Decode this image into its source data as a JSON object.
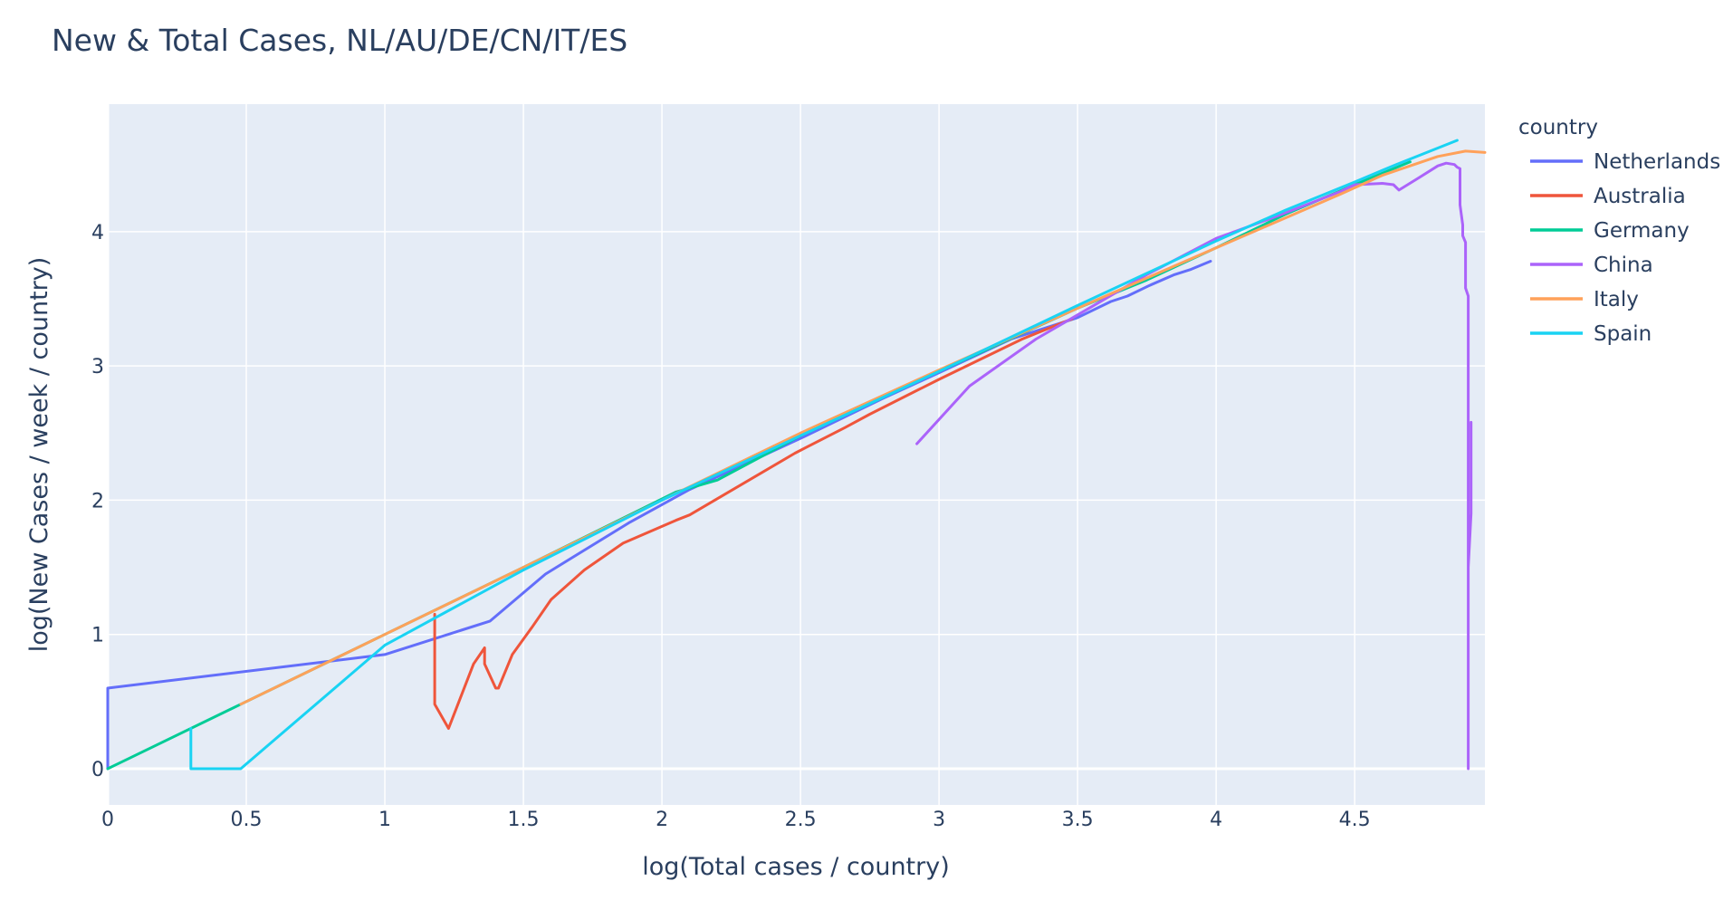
{
  "chart_data": {
    "type": "line",
    "title": "New & Total Cases, NL/AU/DE/CN/IT/ES",
    "xlabel": "log(Total cases / country)",
    "ylabel": "log(New Cases / week / country)",
    "xlim": [
      0,
      4.97
    ],
    "ylim": [
      -0.27,
      4.95
    ],
    "xticks": [
      0,
      0.5,
      1,
      1.5,
      2,
      2.5,
      3,
      3.5,
      4,
      4.5
    ],
    "xtick_labels": [
      "0",
      "0.5",
      "1",
      "1.5",
      "2",
      "2.5",
      "3",
      "3.5",
      "4",
      "4.5"
    ],
    "yticks": [
      0,
      1,
      2,
      3,
      4
    ],
    "ytick_labels": [
      "0",
      "1",
      "2",
      "3",
      "4"
    ],
    "grid": true,
    "plot_bgcolor": "#e5ecf6",
    "legend": {
      "title": "country",
      "position": "right"
    },
    "series": [
      {
        "name": "Netherlands",
        "color": "#636efa",
        "points": [
          [
            0,
            0
          ],
          [
            0,
            0.6
          ],
          [
            1.0,
            0.85
          ],
          [
            1.38,
            1.1
          ],
          [
            1.58,
            1.45
          ],
          [
            1.88,
            1.83
          ],
          [
            2.1,
            2.08
          ],
          [
            2.5,
            2.46
          ],
          [
            2.8,
            2.76
          ],
          [
            3.0,
            2.95
          ],
          [
            3.26,
            3.2
          ],
          [
            3.5,
            3.36
          ],
          [
            3.62,
            3.48
          ],
          [
            3.68,
            3.52
          ],
          [
            3.76,
            3.6
          ],
          [
            3.85,
            3.68
          ],
          [
            3.91,
            3.72
          ],
          [
            3.98,
            3.78
          ]
        ]
      },
      {
        "name": "Australia",
        "color": "#ef553b",
        "points": [
          [
            1.18,
            1.15
          ],
          [
            1.18,
            0.48
          ],
          [
            1.23,
            0.3
          ],
          [
            1.32,
            0.78
          ],
          [
            1.36,
            0.9
          ],
          [
            1.36,
            0.78
          ],
          [
            1.4,
            0.6
          ],
          [
            1.41,
            0.6
          ],
          [
            1.46,
            0.85
          ],
          [
            1.53,
            1.05
          ],
          [
            1.6,
            1.26
          ],
          [
            1.72,
            1.48
          ],
          [
            1.86,
            1.68
          ],
          [
            2.05,
            1.85
          ],
          [
            2.1,
            1.89
          ],
          [
            2.48,
            2.35
          ],
          [
            2.66,
            2.54
          ],
          [
            2.75,
            2.64
          ],
          [
            3.0,
            2.9
          ],
          [
            3.3,
            3.2
          ],
          [
            3.48,
            3.35
          ]
        ]
      },
      {
        "name": "Germany",
        "color": "#00cc96",
        "points": [
          [
            0,
            0
          ],
          [
            0.48,
            0.48
          ],
          [
            1.0,
            1.0
          ],
          [
            1.5,
            1.5
          ],
          [
            2.05,
            2.06
          ],
          [
            2.2,
            2.15
          ],
          [
            2.5,
            2.48
          ],
          [
            3.0,
            2.96
          ],
          [
            3.5,
            3.43
          ],
          [
            3.75,
            3.64
          ],
          [
            4.0,
            3.88
          ],
          [
            4.25,
            4.13
          ],
          [
            4.5,
            4.35
          ],
          [
            4.7,
            4.52
          ]
        ]
      },
      {
        "name": "China",
        "color": "#ab63fa",
        "points": [
          [
            2.92,
            2.42
          ],
          [
            3.11,
            2.85
          ],
          [
            3.35,
            3.2
          ],
          [
            3.5,
            3.38
          ],
          [
            3.75,
            3.68
          ],
          [
            4.0,
            3.95
          ],
          [
            4.2,
            4.1
          ],
          [
            4.45,
            4.3
          ],
          [
            4.5,
            4.35
          ],
          [
            4.6,
            4.36
          ],
          [
            4.64,
            4.35
          ],
          [
            4.66,
            4.31
          ],
          [
            4.73,
            4.4
          ],
          [
            4.8,
            4.49
          ],
          [
            4.83,
            4.51
          ],
          [
            4.86,
            4.5
          ],
          [
            4.87,
            4.48
          ],
          [
            4.88,
            4.47
          ],
          [
            4.88,
            4.2
          ],
          [
            4.89,
            4.05
          ],
          [
            4.89,
            3.97
          ],
          [
            4.9,
            3.92
          ],
          [
            4.9,
            3.58
          ],
          [
            4.91,
            3.52
          ],
          [
            4.91,
            1.6
          ],
          [
            4.91,
            0
          ],
          [
            4.91,
            1.5
          ],
          [
            4.92,
            1.9
          ],
          [
            4.92,
            2.58
          ]
        ]
      },
      {
        "name": "Italy",
        "color": "#ffa15a",
        "points": [
          [
            0.48,
            0.48
          ],
          [
            1.0,
            1.0
          ],
          [
            1.5,
            1.5
          ],
          [
            2.0,
            2.0
          ],
          [
            2.5,
            2.5
          ],
          [
            3.0,
            2.97
          ],
          [
            3.5,
            3.43
          ],
          [
            4.0,
            3.88
          ],
          [
            4.45,
            4.28
          ],
          [
            4.6,
            4.42
          ],
          [
            4.8,
            4.56
          ],
          [
            4.9,
            4.6
          ],
          [
            4.97,
            4.59
          ]
        ]
      },
      {
        "name": "Spain",
        "color": "#19d3f3",
        "points": [
          [
            0.3,
            0.3
          ],
          [
            0.3,
            0
          ],
          [
            0.48,
            0
          ],
          [
            1.0,
            0.92
          ],
          [
            1.5,
            1.48
          ],
          [
            2.0,
            2.0
          ],
          [
            2.5,
            2.48
          ],
          [
            3.0,
            2.96
          ],
          [
            3.5,
            3.45
          ],
          [
            4.0,
            3.93
          ],
          [
            4.25,
            4.16
          ],
          [
            4.5,
            4.37
          ],
          [
            4.65,
            4.5
          ],
          [
            4.87,
            4.68
          ]
        ]
      }
    ]
  }
}
